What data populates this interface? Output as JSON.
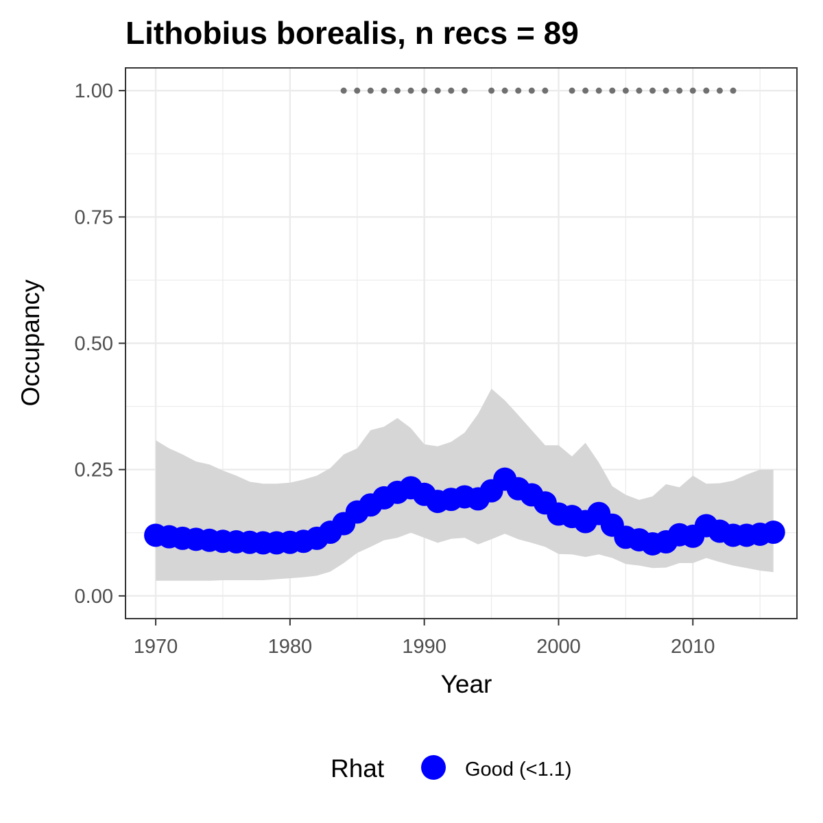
{
  "chart_data": {
    "type": "line",
    "title": "Lithobius borealis, n recs = 89",
    "xlabel": "Year",
    "ylabel": "Occupancy",
    "xlim": [
      1967.75,
      2017.75
    ],
    "ylim": [
      -0.045,
      1.045
    ],
    "x_ticks": [
      1970,
      1980,
      1990,
      2000,
      2010
    ],
    "x_tick_labels": [
      "1970",
      "1980",
      "1990",
      "2000",
      "2010"
    ],
    "y_ticks": [
      0,
      0.25,
      0.5,
      0.75,
      1
    ],
    "y_tick_labels": [
      "0.00",
      "0.25",
      "0.50",
      "0.75",
      "1.00"
    ],
    "grid": true,
    "legend": {
      "position": "bottom",
      "title": "Rhat",
      "entries": [
        {
          "label": "Good (<1.1)",
          "color": "#0000ff"
        }
      ]
    },
    "colors": {
      "points": "#0000ff",
      "ribbon": "#d6d6d6",
      "records": "#707070",
      "grid": "#ebebeb",
      "border": "#333333"
    },
    "x": [
      1970,
      1971,
      1972,
      1973,
      1974,
      1975,
      1976,
      1977,
      1978,
      1979,
      1980,
      1981,
      1982,
      1983,
      1984,
      1985,
      1986,
      1987,
      1988,
      1989,
      1990,
      1991,
      1992,
      1993,
      1994,
      1995,
      1996,
      1997,
      1998,
      1999,
      2000,
      2001,
      2002,
      2003,
      2004,
      2005,
      2006,
      2007,
      2008,
      2009,
      2010,
      2011,
      2012,
      2013,
      2014,
      2015,
      2016
    ],
    "series": [
      {
        "values": [
          0.12,
          0.117,
          0.114,
          0.112,
          0.11,
          0.108,
          0.107,
          0.106,
          0.105,
          0.105,
          0.106,
          0.108,
          0.114,
          0.126,
          0.143,
          0.166,
          0.18,
          0.194,
          0.205,
          0.214,
          0.201,
          0.187,
          0.191,
          0.196,
          0.192,
          0.208,
          0.231,
          0.212,
          0.2,
          0.184,
          0.162,
          0.157,
          0.147,
          0.163,
          0.14,
          0.116,
          0.111,
          0.103,
          0.107,
          0.121,
          0.118,
          0.139,
          0.128,
          0.12,
          0.12,
          0.122,
          0.126
        ],
        "lower": [
          0.03,
          0.03,
          0.03,
          0.03,
          0.03,
          0.031,
          0.031,
          0.031,
          0.031,
          0.033,
          0.035,
          0.037,
          0.04,
          0.048,
          0.065,
          0.085,
          0.097,
          0.11,
          0.115,
          0.125,
          0.115,
          0.105,
          0.113,
          0.115,
          0.102,
          0.112,
          0.123,
          0.112,
          0.105,
          0.097,
          0.083,
          0.082,
          0.077,
          0.082,
          0.075,
          0.063,
          0.06,
          0.055,
          0.056,
          0.065,
          0.065,
          0.075,
          0.067,
          0.06,
          0.055,
          0.05,
          0.047
        ],
        "upper": [
          0.308,
          0.292,
          0.28,
          0.266,
          0.26,
          0.248,
          0.238,
          0.226,
          0.222,
          0.222,
          0.224,
          0.23,
          0.238,
          0.253,
          0.28,
          0.292,
          0.328,
          0.335,
          0.352,
          0.332,
          0.3,
          0.296,
          0.305,
          0.323,
          0.36,
          0.41,
          0.387,
          0.358,
          0.328,
          0.298,
          0.298,
          0.276,
          0.303,
          0.264,
          0.217,
          0.2,
          0.19,
          0.197,
          0.221,
          0.215,
          0.238,
          0.222,
          0.223,
          0.228,
          0.24,
          0.25,
          0.25
        ]
      }
    ],
    "record_years": [
      1984,
      1985,
      1986,
      1987,
      1988,
      1989,
      1990,
      1991,
      1992,
      1993,
      1995,
      1996,
      1997,
      1998,
      1999,
      2001,
      2002,
      2003,
      2004,
      2005,
      2006,
      2007,
      2008,
      2009,
      2010,
      2011,
      2012,
      2013
    ]
  }
}
